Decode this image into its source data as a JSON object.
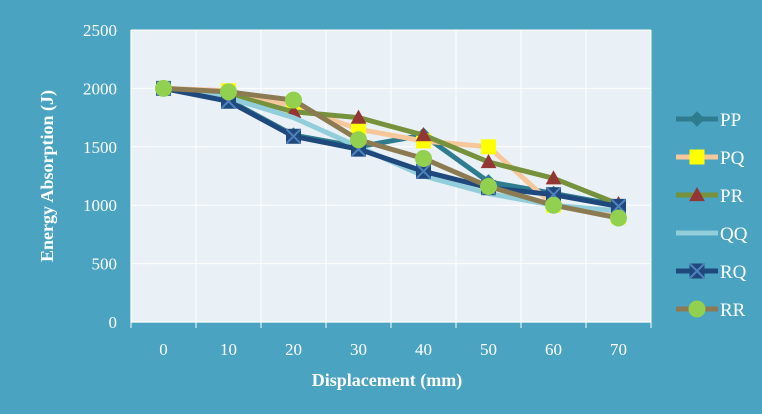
{
  "chart_data": {
    "type": "line",
    "title": "",
    "xlabel": "Displacement (mm)",
    "ylabel": "Energy Absorption (J)",
    "x": [
      0,
      10,
      20,
      30,
      40,
      50,
      60,
      70
    ],
    "xlim": [
      -5,
      75
    ],
    "ylim": [
      0,
      2500
    ],
    "yticks": [
      0,
      500,
      1000,
      1500,
      2000,
      2500
    ],
    "grid": true,
    "legend_position": "right",
    "colors": {
      "background": "#4aa3c1",
      "plot_area": "#eaf1f6",
      "grid": "#ffffff",
      "text": "#ffffff"
    },
    "series": [
      {
        "name": "PP",
        "values": [
          2000,
          1900,
          1600,
          1500,
          1600,
          1200,
          1100,
          1000
        ],
        "color": "#2e7c8e",
        "marker": "diamond"
      },
      {
        "name": "PQ",
        "values": [
          2000,
          1980,
          1850,
          1650,
          1550,
          1500,
          1000,
          900
        ],
        "color": "#f7c79c",
        "marker": "square",
        "marker_color": "#ffff00"
      },
      {
        "name": "PR",
        "values": [
          2000,
          1950,
          1800,
          1750,
          1600,
          1370,
          1230,
          1010
        ],
        "color": "#76923c",
        "marker": "triangle",
        "marker_color": "#943634"
      },
      {
        "name": "QQ",
        "values": [
          2000,
          1920,
          1750,
          1500,
          1250,
          1100,
          1000,
          950
        ],
        "color": "#92cddc",
        "marker": "none"
      },
      {
        "name": "RQ",
        "values": [
          2000,
          1890,
          1590,
          1480,
          1290,
          1150,
          1090,
          990
        ],
        "color": "#1f497d",
        "marker": "x-square"
      },
      {
        "name": "RR",
        "values": [
          2000,
          1970,
          1900,
          1560,
          1400,
          1160,
          1000,
          890
        ],
        "color": "#8c7a52",
        "marker": "circle",
        "marker_color": "#92d050"
      }
    ]
  }
}
